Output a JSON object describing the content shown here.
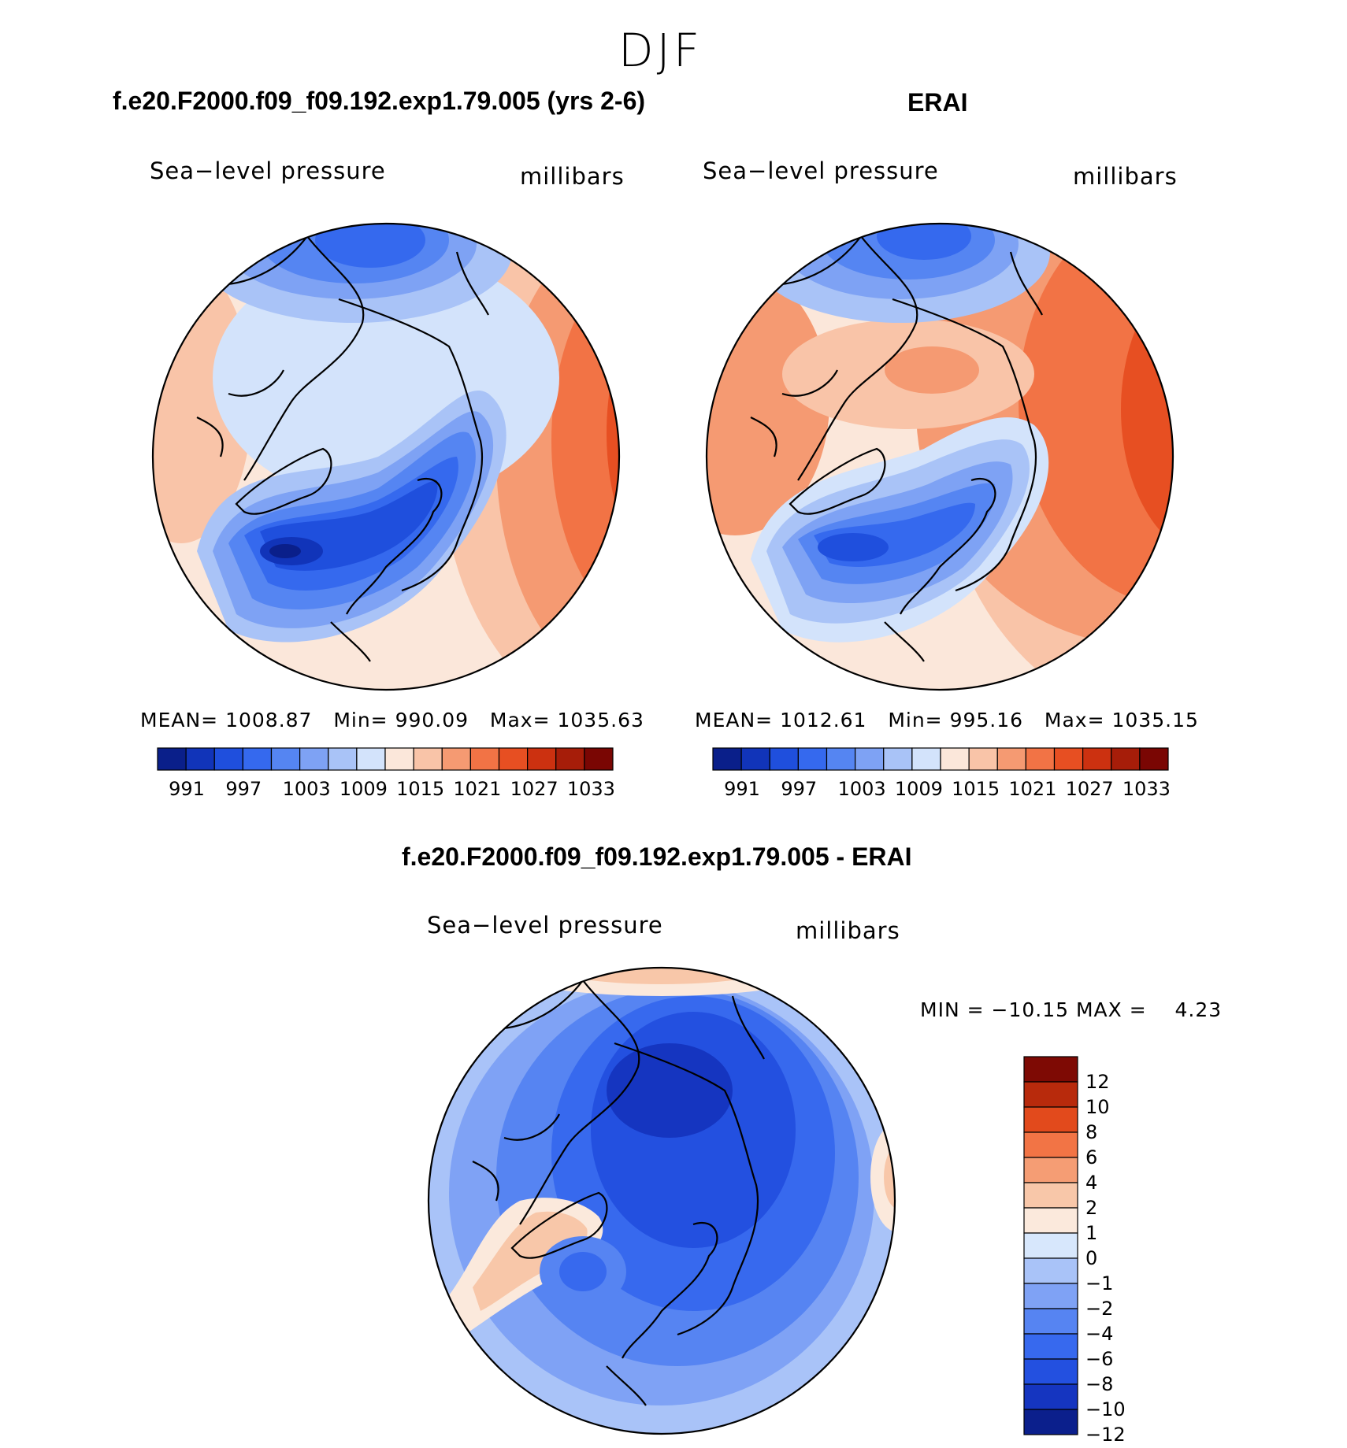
{
  "season": "DJF",
  "colors": {
    "abs_scale": [
      "#0a1f8a",
      "#1134b9",
      "#1f4fdd",
      "#3569ee",
      "#5585f2",
      "#7ea2f4",
      "#a9c3f7",
      "#d3e3fb",
      "#fbe7da",
      "#f9c4a8",
      "#f59a72",
      "#f27345",
      "#e74f22",
      "#cc3110",
      "#a61d09",
      "#7a0603"
    ],
    "diff_scale": [
      "#0b1f8c",
      "#1535c0",
      "#2350e0",
      "#3769ee",
      "#5684f2",
      "#7fa2f5",
      "#a9c3f8",
      "#d7e7fc",
      "#fbe9dc",
      "#f8c7a9",
      "#f59d74",
      "#f27445",
      "#e24a1c",
      "#b82a0c",
      "#7e0a04"
    ]
  },
  "chart_data": [
    {
      "type": "polar-contour-map",
      "title": "f.e20.F2000.f09_f09.192.exp1.79.005 (yrs 2-6)",
      "variable": "Sea−level pressure",
      "units": "millibars",
      "stats": {
        "mean_label": "MEAN=",
        "mean": "1008.87",
        "min_label": "Min=",
        "min": "990.09",
        "max_label": "Max=",
        "max": "1035.63"
      },
      "levels": [
        "991",
        "997",
        "1003",
        "1009",
        "1015",
        "1021",
        "1027",
        "1033"
      ]
    },
    {
      "type": "polar-contour-map",
      "title": "ERAI",
      "variable": "Sea−level pressure",
      "units": "millibars",
      "stats": {
        "mean_label": "MEAN=",
        "mean": "1012.61",
        "min_label": "Min=",
        "min": "995.16",
        "max_label": "Max=",
        "max": "1035.15"
      },
      "levels": [
        "991",
        "997",
        "1003",
        "1009",
        "1015",
        "1021",
        "1027",
        "1033"
      ]
    },
    {
      "type": "polar-contour-map",
      "title": "f.e20.F2000.f09_f09.192.exp1.79.005 - ERAI",
      "variable": "Sea−level pressure",
      "units": "millibars",
      "stats": {
        "min_label": "MIN =",
        "min": "−10.15",
        "max_label": "MAX =",
        "max": "4.23"
      },
      "levels": [
        "12",
        "10",
        "8",
        "6",
        "4",
        "2",
        "1",
        "0",
        "−1",
        "−2",
        "−4",
        "−6",
        "−8",
        "−10",
        "−12"
      ]
    }
  ]
}
